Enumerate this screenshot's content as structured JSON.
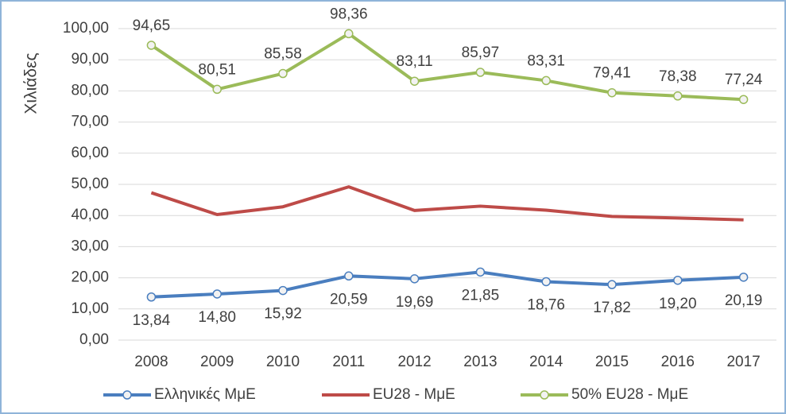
{
  "chart_data": {
    "type": "line",
    "y_label": "Χιλιάδες",
    "categories": [
      "2008",
      "2009",
      "2010",
      "2011",
      "2012",
      "2013",
      "2014",
      "2015",
      "2016",
      "2017"
    ],
    "ylim": [
      0,
      100
    ],
    "yticks": [
      {
        "value": 0,
        "label": "0,00"
      },
      {
        "value": 10,
        "label": "10,00"
      },
      {
        "value": 20,
        "label": "20,00"
      },
      {
        "value": 30,
        "label": "30,00"
      },
      {
        "value": 40,
        "label": "40,00"
      },
      {
        "value": 50,
        "label": "50,00"
      },
      {
        "value": 60,
        "label": "60,00"
      },
      {
        "value": 70,
        "label": "70,00"
      },
      {
        "value": 80,
        "label": "80,00"
      },
      {
        "value": 90,
        "label": "90,00"
      },
      {
        "value": 100,
        "label": "100,00"
      }
    ],
    "grid": true,
    "legend": "bottom",
    "series": [
      {
        "name": "Ελληνικές ΜμΕ",
        "color": "#4a7ebf",
        "marker": true,
        "label_position": "below",
        "values": [
          13.84,
          14.8,
          15.92,
          20.59,
          19.69,
          21.85,
          18.76,
          17.82,
          19.2,
          20.19
        ],
        "value_labels": [
          "13,84",
          "14,80",
          "15,92",
          "20,59",
          "19,69",
          "21,85",
          "18,76",
          "17,82",
          "19,20",
          "20,19"
        ]
      },
      {
        "name": "EU28 - ΜμΕ",
        "color": "#be4b48",
        "marker": false,
        "values": [
          47.3,
          40.3,
          42.8,
          49.2,
          41.6,
          43.0,
          41.7,
          39.7,
          39.2,
          38.6
        ]
      },
      {
        "name": "50% EU28 - ΜμΕ",
        "color": "#9bbb59",
        "marker": true,
        "label_position": "above",
        "values": [
          94.65,
          80.51,
          85.58,
          98.36,
          83.11,
          85.97,
          83.31,
          79.41,
          78.38,
          77.24
        ],
        "value_labels": [
          "94,65",
          "80,51",
          "85,58",
          "98,36",
          "83,11",
          "85,97",
          "83,31",
          "79,41",
          "78,38",
          "77,24"
        ]
      }
    ]
  }
}
